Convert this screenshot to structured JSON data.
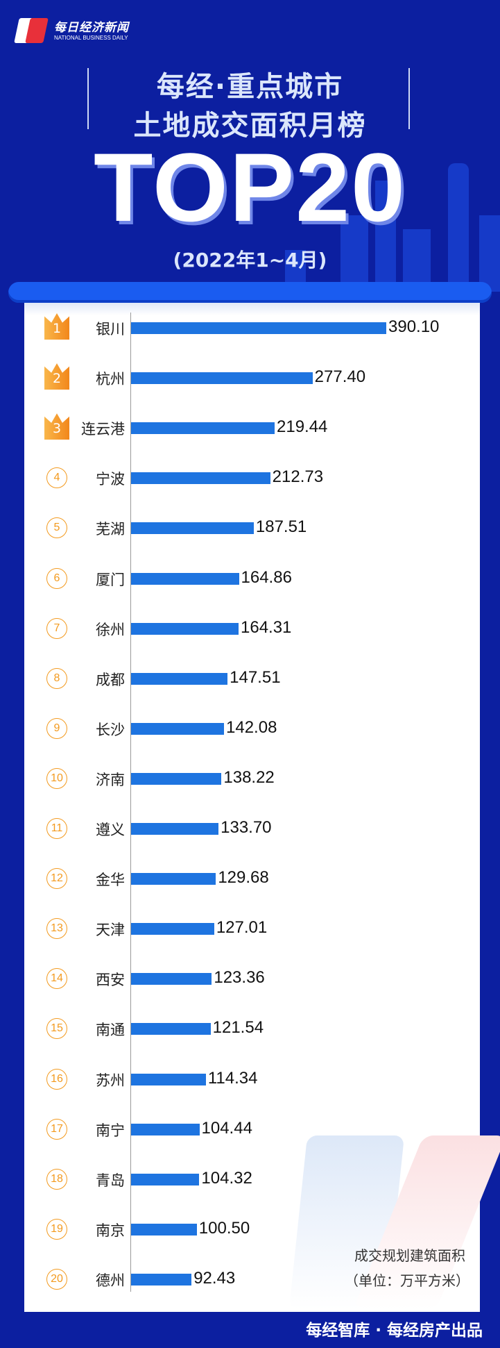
{
  "brand": {
    "name_cn": "每日经济新闻",
    "name_en": "NATIONAL BUSINESS DAILY"
  },
  "header": {
    "title_line1": "每经·重点城市",
    "title_line2": "土地成交面积月榜",
    "headline": "TOP20",
    "period": "(2022年1~4月)"
  },
  "chart_data": {
    "type": "bar",
    "orientation": "horizontal",
    "categories": [
      "银川",
      "杭州",
      "连云港",
      "宁波",
      "芜湖",
      "厦门",
      "徐州",
      "成都",
      "长沙",
      "济南",
      "遵义",
      "金华",
      "天津",
      "西安",
      "南通",
      "苏州",
      "南宁",
      "青岛",
      "南京",
      "德州"
    ],
    "ranks": [
      "1",
      "2",
      "3",
      "4",
      "5",
      "6",
      "7",
      "8",
      "9",
      "10",
      "11",
      "12",
      "13",
      "14",
      "15",
      "16",
      "17",
      "18",
      "19",
      "20"
    ],
    "values": [
      390.1,
      277.4,
      219.44,
      212.73,
      187.51,
      164.86,
      164.31,
      147.51,
      142.08,
      138.22,
      133.7,
      129.68,
      127.01,
      123.36,
      121.54,
      114.34,
      104.44,
      104.32,
      100.5,
      92.43
    ],
    "value_labels": [
      "390.10",
      "277.40",
      "219.44",
      "212.73",
      "187.51",
      "164.86",
      "164.31",
      "147.51",
      "142.08",
      "138.22",
      "133.70",
      "129.68",
      "127.01",
      "123.36",
      "121.54",
      "114.34",
      "104.44",
      "104.32",
      "100.50",
      "92.43"
    ],
    "bar_color": "#1e74e0",
    "rank_color": "#f39a1e",
    "unit_line1": "成交规划建筑面积",
    "unit_line2": "（单位：万平方米）"
  },
  "footer": {
    "credit": "每经智库 · 每经房产出品"
  }
}
